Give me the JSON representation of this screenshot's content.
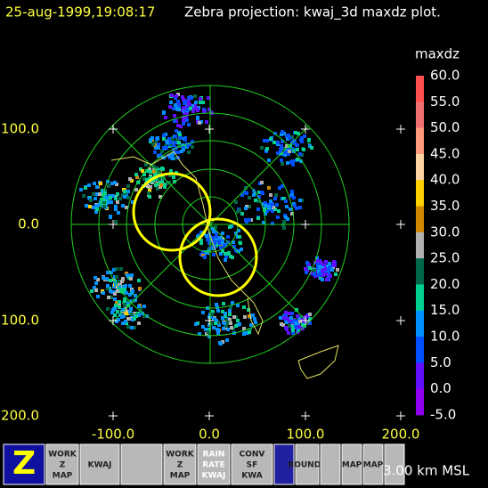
{
  "header": {
    "timestamp": "25-aug-1999,19:08:17",
    "title": "Zebra projection: kwaj_3d maxdz plot."
  },
  "plot": {
    "x_labels": [
      "-100.0",
      "0.0",
      "100.0",
      "200.0"
    ],
    "y_labels": [
      "100.0",
      "0.0",
      "100.0",
      "200.0"
    ]
  },
  "colorbar": {
    "title": "maxdz",
    "labels": [
      "60.0",
      "55.0",
      "50.0",
      "45.0",
      "40.0",
      "35.0",
      "30.0",
      "25.0",
      "20.0",
      "15.0",
      "10.0",
      "5.0",
      "0.0",
      "-5.0"
    ],
    "colors": [
      "#ff5050",
      "#f07070",
      "#ff9a7a",
      "#ffd4a0",
      "#ffd000",
      "#d08800",
      "#b0b0b0",
      "#006848",
      "#00d090",
      "#0090ff",
      "#0050ff",
      "#6010ff",
      "#9000f0"
    ]
  },
  "toolbar": {
    "buttons": [
      {
        "lines": [
          "Z"
        ]
      },
      {
        "lines": [
          "WORK",
          "Z",
          "MAP"
        ]
      },
      {
        "lines": [
          "KWAJ"
        ]
      },
      {
        "lines": []
      },
      {
        "lines": [
          "WORK",
          "Z",
          "MAP"
        ]
      },
      {
        "lines": [
          "RAIN",
          "RATE",
          "KWAJ"
        ]
      },
      {
        "lines": [
          "CONV",
          "SF",
          "KWA"
        ]
      },
      {
        "lines": []
      },
      {
        "lines": [
          "BOUNDS"
        ]
      },
      {
        "lines": []
      },
      {
        "lines": [
          "MAP"
        ]
      },
      {
        "lines": [
          "MAP"
        ]
      },
      {
        "lines": []
      }
    ]
  },
  "status": "3.00 km MSL"
}
